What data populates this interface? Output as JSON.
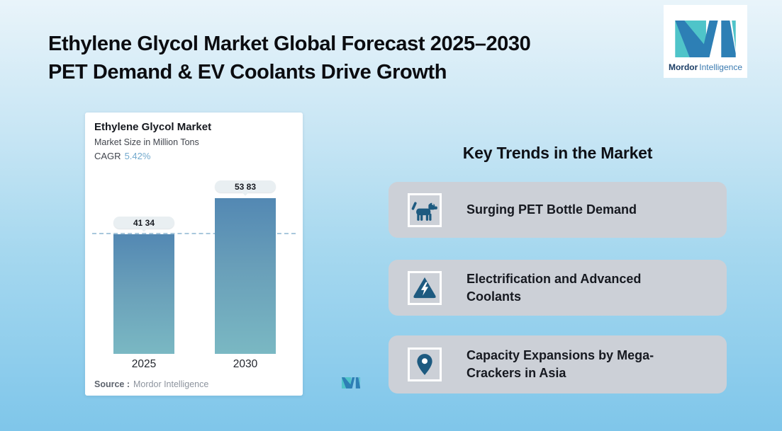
{
  "header": {
    "title_line1": "Ethylene Glycol Market Global Forecast 2025–2030",
    "title_line2": "PET Demand & EV Coolants Drive Growth"
  },
  "logo": {
    "name_bold": "Mordor",
    "name_light": "Intelligence"
  },
  "chart_card": {
    "title": "Ethylene Glycol Market",
    "subtitle": "Market Size in Million Tons",
    "cagr_label": "CAGR",
    "cagr_value": "5.42%",
    "source_label": "Source :",
    "source_value": "Mordor Intelligence"
  },
  "chart_data": {
    "type": "bar",
    "title": "Ethylene Glycol Market",
    "ylabel": "Market Size in Million Tons",
    "categories": [
      "2025",
      "2030"
    ],
    "values": [
      41.34,
      53.83
    ],
    "value_labels": [
      "41.34",
      "53.83"
    ],
    "cagr_percent": 5.42,
    "reference_line": 41.34,
    "grid": false,
    "legend": false
  },
  "key_trends": {
    "heading": "Key Trends in the Market",
    "items": [
      {
        "icon": "dog-icon",
        "label": "Surging PET Bottle Demand"
      },
      {
        "icon": "warning-lightning-icon",
        "label": "Electrification and Advanced Coolants"
      },
      {
        "icon": "location-pin-icon",
        "label": "Capacity Expansions by Mega-Crackers in Asia"
      }
    ]
  },
  "colors": {
    "background_top": "#e9f4fa",
    "background_bottom": "#7fc6ea",
    "trend_card_gray": "#ccd0d7",
    "icon_blue": "#1d5a80",
    "bar_gradient_top": "#5388b3",
    "bar_gradient_bottom": "#7ab8c3",
    "cagr_value_blue": "#72a9cd",
    "dashed_line": "#a9c8dc",
    "pill_background": "#e9eff2",
    "source_text_gray": "#8d949e",
    "title_text": "#0b0c10",
    "logo_teal": "#4fc4c9",
    "logo_blue": "#2d7fb5"
  }
}
